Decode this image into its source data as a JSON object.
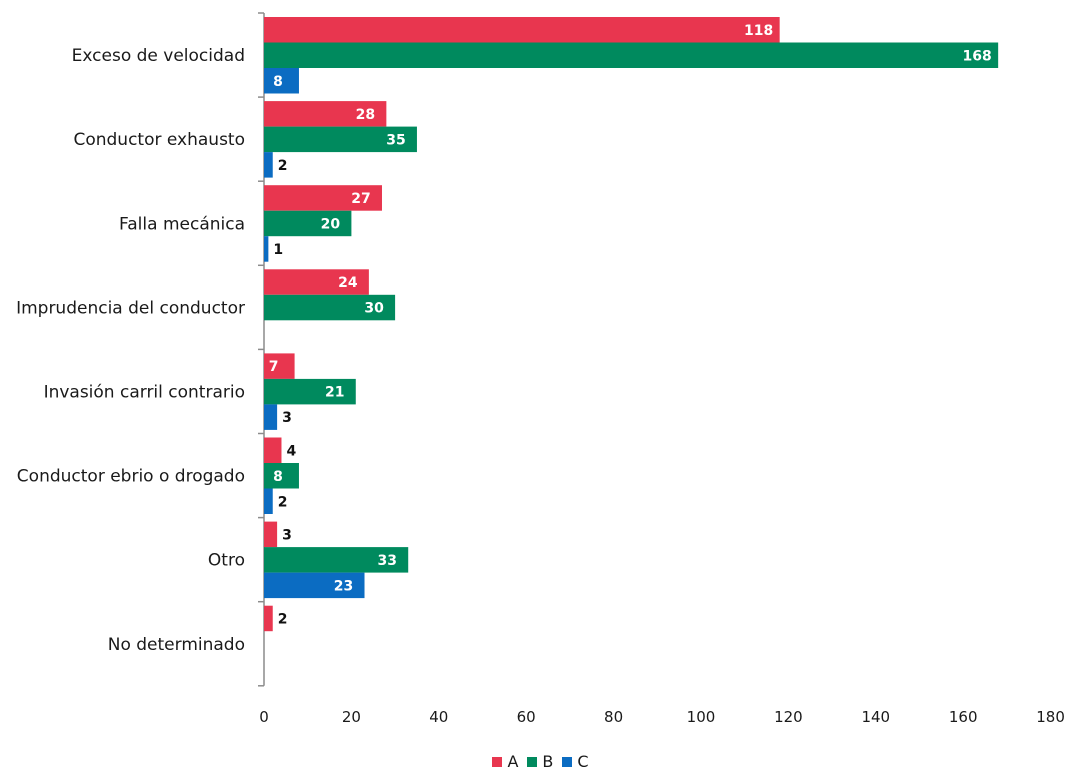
{
  "chart_data": {
    "type": "bar",
    "orientation": "horizontal",
    "categories": [
      "Exceso de velocidad",
      "Conductor exhausto",
      "Falla mecánica",
      "Imprudencia del conductor",
      "Invasión carril contrario",
      "Conductor ebrio o drogado",
      "Otro",
      "No determinado"
    ],
    "series": [
      {
        "name": "A",
        "color": "#e8364f",
        "values": [
          118,
          28,
          27,
          24,
          7,
          4,
          3,
          2
        ]
      },
      {
        "name": "B",
        "color": "#008a5e",
        "values": [
          168,
          35,
          20,
          30,
          21,
          8,
          33,
          null
        ]
      },
      {
        "name": "C",
        "color": "#0b6cc2",
        "values": [
          8,
          2,
          1,
          null,
          3,
          2,
          23,
          null
        ]
      }
    ],
    "x_ticks": [
      "0",
      "20",
      "40",
      "60",
      "80",
      "100",
      "120",
      "140",
      "160",
      "180"
    ],
    "xlim": [
      0,
      180
    ],
    "grid": false,
    "legend_position": "bottom"
  }
}
